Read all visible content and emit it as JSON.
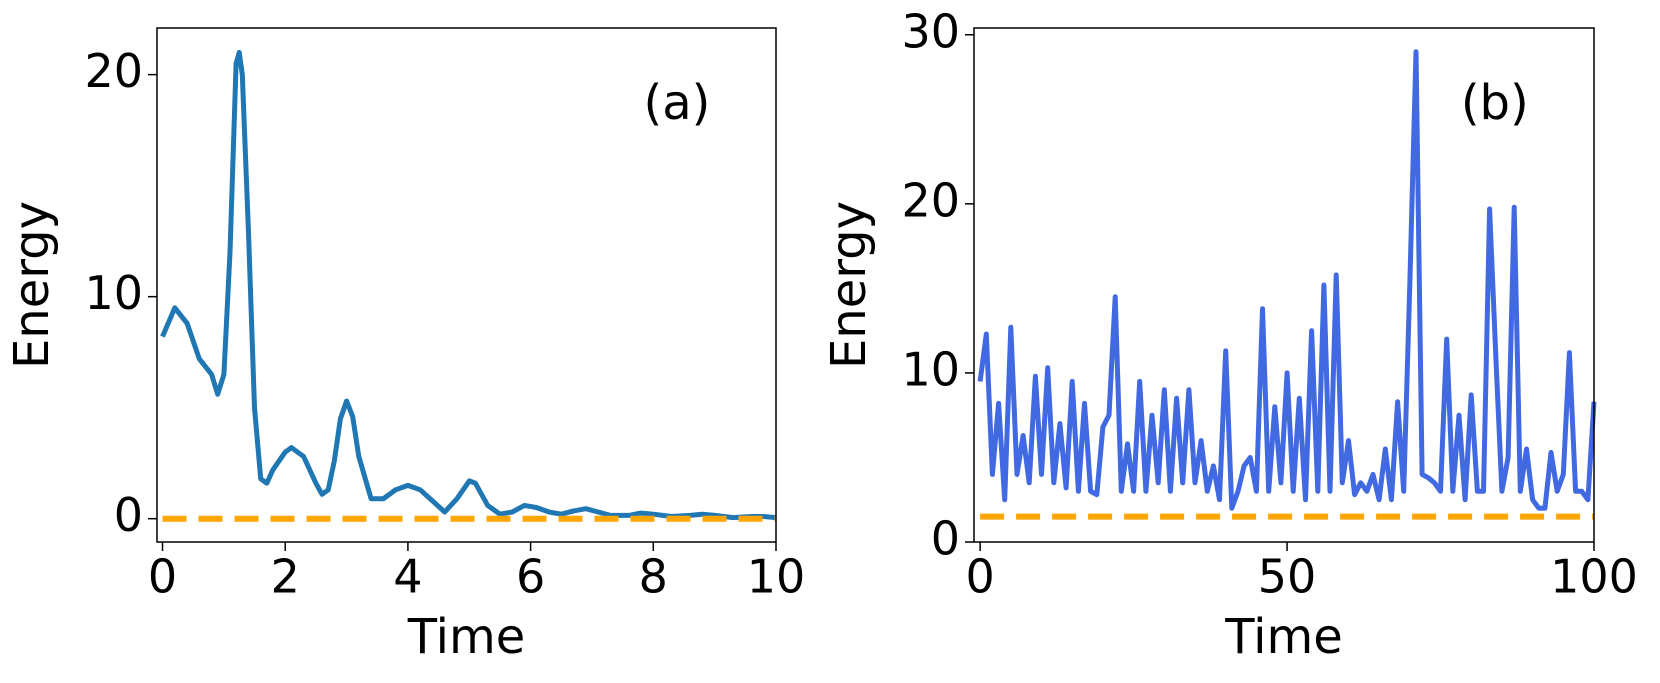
{
  "chart_data": [
    {
      "type": "line",
      "xlabel": "Time",
      "ylabel": "Energy",
      "annotation": "(a)",
      "xlim": [
        -0.09,
        10
      ],
      "ylim": [
        -1.05,
        22.1
      ],
      "xticks": [
        0,
        2,
        4,
        6,
        8,
        10
      ],
      "yticks": [
        0,
        10,
        20
      ],
      "series": [
        {
          "color": "#1f77b4",
          "dash": false,
          "x": [
            0,
            0.2,
            0.4,
            0.6,
            0.8,
            0.9,
            1.0,
            1.1,
            1.2,
            1.25,
            1.3,
            1.4,
            1.5,
            1.6,
            1.7,
            1.8,
            2.0,
            2.1,
            2.3,
            2.5,
            2.6,
            2.7,
            2.8,
            2.9,
            3.0,
            3.1,
            3.2,
            3.4,
            3.6,
            3.8,
            4.0,
            4.2,
            4.4,
            4.6,
            4.8,
            5.0,
            5.1,
            5.3,
            5.5,
            5.7,
            5.9,
            6.1,
            6.3,
            6.5,
            6.7,
            6.9,
            7.1,
            7.3,
            7.6,
            7.8,
            8.0,
            8.3,
            8.6,
            8.8,
            9.0,
            9.3,
            9.6,
            9.8,
            10
          ],
          "values": [
            8.2,
            9.5,
            8.8,
            7.2,
            6.5,
            5.6,
            6.5,
            12,
            20.5,
            21,
            20,
            13,
            5,
            1.8,
            1.6,
            2.2,
            3.0,
            3.2,
            2.8,
            1.6,
            1.1,
            1.3,
            2.6,
            4.5,
            5.3,
            4.6,
            2.8,
            0.9,
            0.9,
            1.3,
            1.5,
            1.3,
            0.8,
            0.3,
            0.9,
            1.7,
            1.6,
            0.6,
            0.2,
            0.3,
            0.6,
            0.5,
            0.3,
            0.2,
            0.35,
            0.45,
            0.3,
            0.15,
            0.15,
            0.25,
            0.2,
            0.1,
            0.15,
            0.2,
            0.15,
            0.05,
            0.1,
            0.1,
            0.05
          ]
        },
        {
          "color": "#ffa500",
          "dash": true,
          "x": [
            0,
            10
          ],
          "values": [
            0,
            0
          ]
        }
      ]
    },
    {
      "type": "line",
      "xlabel": "Time",
      "ylabel": "Energy",
      "annotation": "(b)",
      "xlim": [
        -1,
        100
      ],
      "ylim": [
        0,
        30.4
      ],
      "xticks": [
        0,
        50,
        100
      ],
      "yticks": [
        0,
        10,
        20,
        30
      ],
      "series": [
        {
          "color": "#4169e1",
          "dash": false,
          "x": [
            0,
            1,
            2,
            3,
            4,
            5,
            6,
            7,
            8,
            9,
            10,
            11,
            12,
            13,
            14,
            15,
            16,
            17,
            18,
            19,
            20,
            21,
            22,
            23,
            24,
            25,
            26,
            27,
            28,
            29,
            30,
            31,
            32,
            33,
            34,
            35,
            36,
            37,
            38,
            39,
            40,
            41,
            42,
            43,
            44,
            45,
            46,
            47,
            48,
            49,
            50,
            51,
            52,
            53,
            54,
            55,
            56,
            57,
            58,
            59,
            60,
            61,
            62,
            63,
            64,
            65,
            66,
            67,
            68,
            69,
            70,
            71,
            72,
            73,
            74,
            75,
            76,
            77,
            78,
            79,
            80,
            81,
            82,
            83,
            84,
            85,
            86,
            87,
            88,
            89,
            90,
            91,
            92,
            93,
            94,
            95,
            96,
            97,
            98,
            99,
            100
          ],
          "values": [
            9.5,
            12.3,
            4,
            8.2,
            2.5,
            12.7,
            4,
            6.3,
            3.5,
            9.8,
            4,
            10.3,
            3.5,
            7,
            3.2,
            9.5,
            3,
            8.2,
            3,
            2.8,
            6.8,
            7.5,
            14.5,
            3,
            5.8,
            3,
            9.5,
            3,
            7.5,
            3.5,
            9,
            3,
            8.5,
            3.5,
            9,
            3.5,
            6,
            3,
            4.5,
            2.5,
            11.3,
            2,
            3,
            4.5,
            5,
            3,
            13.8,
            3,
            8,
            3.5,
            10,
            3,
            8.5,
            2.5,
            12.5,
            3,
            15.2,
            3,
            15.8,
            3.5,
            6,
            2.8,
            3.5,
            3,
            4,
            2.5,
            5.5,
            2.5,
            8.3,
            3,
            15.2,
            29,
            4,
            3.8,
            3.5,
            3,
            12,
            3,
            7.5,
            2.5,
            8.7,
            3,
            3,
            19.7,
            11,
            3,
            5,
            19.8,
            3,
            5.5,
            2.5,
            2,
            2,
            5.3,
            3,
            4,
            11.2,
            3,
            3,
            2.5,
            8.3
          ]
        },
        {
          "color": "#ffa500",
          "dash": true,
          "x": [
            0,
            100
          ],
          "values": [
            1.5,
            1.5
          ]
        }
      ]
    }
  ]
}
